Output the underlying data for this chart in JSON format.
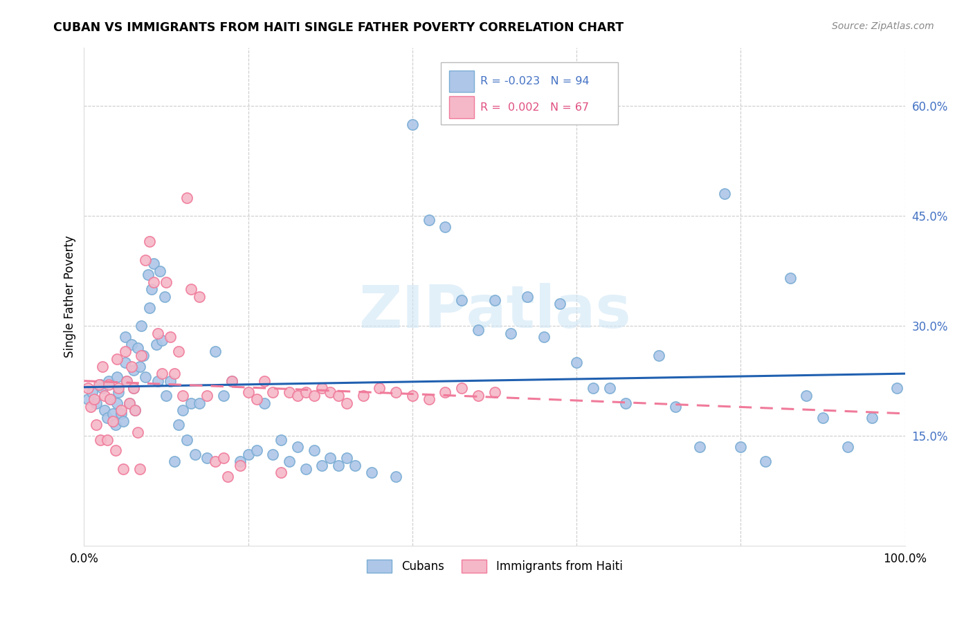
{
  "title": "CUBAN VS IMMIGRANTS FROM HAITI SINGLE FATHER POVERTY CORRELATION CHART",
  "source": "Source: ZipAtlas.com",
  "ylabel": "Single Father Poverty",
  "ytick_vals": [
    0.15,
    0.3,
    0.45,
    0.6
  ],
  "xlim": [
    0.0,
    1.0
  ],
  "ylim": [
    0.0,
    0.68
  ],
  "legend_cubans": "Cubans",
  "legend_haiti": "Immigrants from Haiti",
  "r_cubans": "-0.023",
  "n_cubans": "94",
  "r_haiti": "0.002",
  "n_haiti": "67",
  "color_cubans": "#aec6e8",
  "color_haiti": "#f5b8c8",
  "color_cubans_edge": "#7aadd4",
  "color_haiti_edge": "#f07a9a",
  "trendline_cubans": "#2060b0",
  "trendline_haiti": "#f07a9a",
  "watermark": "ZIPatlas",
  "background": "#ffffff",
  "grid_color": "#cccccc",
  "cubans_x": [
    0.005,
    0.01,
    0.015,
    0.02,
    0.022,
    0.025,
    0.028,
    0.03,
    0.032,
    0.035,
    0.038,
    0.04,
    0.04,
    0.042,
    0.045,
    0.048,
    0.05,
    0.05,
    0.052,
    0.055,
    0.058,
    0.06,
    0.06,
    0.062,
    0.065,
    0.068,
    0.07,
    0.072,
    0.075,
    0.078,
    0.08,
    0.082,
    0.085,
    0.088,
    0.09,
    0.092,
    0.095,
    0.098,
    0.1,
    0.105,
    0.11,
    0.115,
    0.12,
    0.125,
    0.13,
    0.135,
    0.14,
    0.15,
    0.16,
    0.17,
    0.18,
    0.19,
    0.2,
    0.21,
    0.22,
    0.23,
    0.24,
    0.25,
    0.26,
    0.27,
    0.28,
    0.29,
    0.3,
    0.31,
    0.32,
    0.33,
    0.35,
    0.38,
    0.4,
    0.42,
    0.44,
    0.46,
    0.48,
    0.5,
    0.52,
    0.54,
    0.56,
    0.58,
    0.6,
    0.62,
    0.64,
    0.66,
    0.7,
    0.72,
    0.75,
    0.78,
    0.8,
    0.83,
    0.86,
    0.88,
    0.9,
    0.93,
    0.96,
    0.99
  ],
  "cubans_y": [
    0.2,
    0.21,
    0.195,
    0.22,
    0.215,
    0.185,
    0.175,
    0.225,
    0.2,
    0.18,
    0.165,
    0.23,
    0.195,
    0.21,
    0.18,
    0.17,
    0.285,
    0.25,
    0.225,
    0.195,
    0.275,
    0.24,
    0.215,
    0.185,
    0.27,
    0.245,
    0.3,
    0.26,
    0.23,
    0.37,
    0.325,
    0.35,
    0.385,
    0.275,
    0.225,
    0.375,
    0.28,
    0.34,
    0.205,
    0.225,
    0.115,
    0.165,
    0.185,
    0.145,
    0.195,
    0.125,
    0.195,
    0.12,
    0.265,
    0.205,
    0.225,
    0.115,
    0.125,
    0.13,
    0.195,
    0.125,
    0.145,
    0.115,
    0.135,
    0.105,
    0.13,
    0.11,
    0.12,
    0.11,
    0.12,
    0.11,
    0.1,
    0.095,
    0.575,
    0.445,
    0.435,
    0.335,
    0.295,
    0.335,
    0.29,
    0.34,
    0.285,
    0.33,
    0.25,
    0.215,
    0.215,
    0.195,
    0.26,
    0.19,
    0.135,
    0.48,
    0.135,
    0.115,
    0.365,
    0.205,
    0.175,
    0.135,
    0.175,
    0.215
  ],
  "haiti_x": [
    0.005,
    0.008,
    0.012,
    0.015,
    0.018,
    0.02,
    0.022,
    0.025,
    0.028,
    0.03,
    0.032,
    0.035,
    0.038,
    0.04,
    0.042,
    0.045,
    0.048,
    0.05,
    0.052,
    0.055,
    0.058,
    0.06,
    0.062,
    0.065,
    0.068,
    0.07,
    0.075,
    0.08,
    0.085,
    0.09,
    0.095,
    0.1,
    0.105,
    0.11,
    0.115,
    0.12,
    0.125,
    0.13,
    0.14,
    0.15,
    0.16,
    0.17,
    0.175,
    0.18,
    0.19,
    0.2,
    0.21,
    0.22,
    0.23,
    0.24,
    0.25,
    0.26,
    0.27,
    0.28,
    0.29,
    0.3,
    0.31,
    0.32,
    0.34,
    0.36,
    0.38,
    0.4,
    0.42,
    0.44,
    0.46,
    0.48,
    0.5
  ],
  "haiti_y": [
    0.215,
    0.19,
    0.2,
    0.165,
    0.22,
    0.145,
    0.245,
    0.205,
    0.145,
    0.22,
    0.2,
    0.17,
    0.13,
    0.255,
    0.215,
    0.185,
    0.105,
    0.265,
    0.225,
    0.195,
    0.245,
    0.215,
    0.185,
    0.155,
    0.105,
    0.26,
    0.39,
    0.415,
    0.36,
    0.29,
    0.235,
    0.36,
    0.285,
    0.235,
    0.265,
    0.205,
    0.475,
    0.35,
    0.34,
    0.205,
    0.115,
    0.12,
    0.095,
    0.225,
    0.11,
    0.21,
    0.2,
    0.225,
    0.21,
    0.1,
    0.21,
    0.205,
    0.21,
    0.205,
    0.215,
    0.21,
    0.205,
    0.195,
    0.205,
    0.215,
    0.21,
    0.205,
    0.2,
    0.21,
    0.215,
    0.205,
    0.21
  ]
}
